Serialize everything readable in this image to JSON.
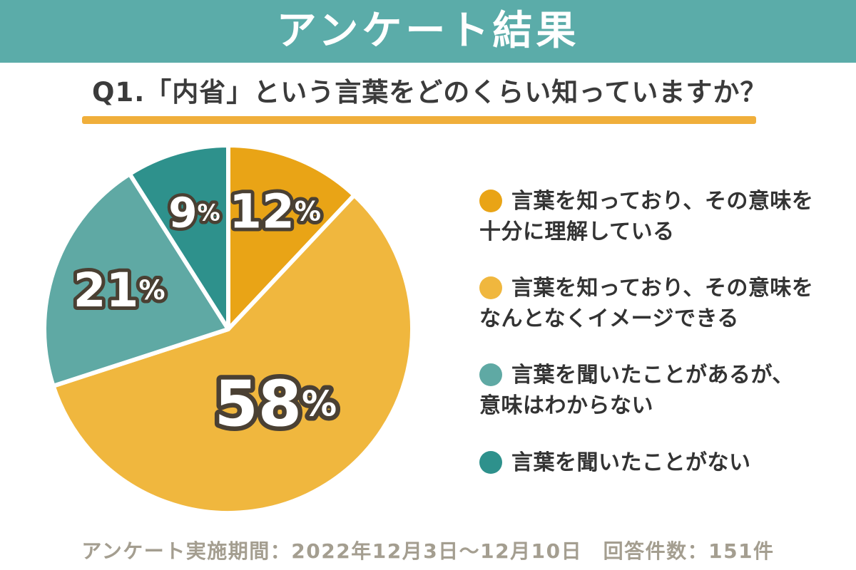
{
  "header": {
    "title": "アンケート結果"
  },
  "question": {
    "label": "Q1.「内省」という言葉をどのくらい知っていますか？"
  },
  "chart_data": {
    "type": "pie",
    "title": "Q1.「内省」という言葉をどのくらい知っていますか？",
    "start_angle_deg": 0,
    "direction": "clockwise",
    "slices": [
      {
        "label": "言葉を知っており、その意味を十分に理解している",
        "value": 12,
        "display": "12%",
        "color": "#E9A416"
      },
      {
        "label": "言葉を知っており、その意味をなんとなくイメージできる",
        "value": 58,
        "display": "58%",
        "color": "#F0B73E"
      },
      {
        "label": "言葉を聞いたことがあるが、意味はわからない",
        "value": 21,
        "display": "21%",
        "color": "#5FA9A4"
      },
      {
        "label": "言葉を聞いたことがない",
        "value": 9,
        "display": "9%",
        "color": "#2E918C"
      }
    ],
    "units": "%",
    "legend_position": "right",
    "label_radius": [
      0.69,
      0.48,
      0.63,
      0.66
    ],
    "label_size": [
      66,
      88,
      66,
      58
    ]
  },
  "legend": {
    "items": [
      {
        "text": "言葉を知っており、その意味を\n十分に理解している",
        "color": "#E9A416",
        "icon": "circle-swatch"
      },
      {
        "text": "言葉を知っており、その意味を\nなんとなくイメージできる",
        "color": "#F0B73E",
        "icon": "circle-swatch"
      },
      {
        "text": "言葉を聞いたことがあるが、\n意味はわからない",
        "color": "#5FA9A4",
        "icon": "circle-swatch"
      },
      {
        "text": "言葉を聞いたことがない",
        "color": "#2E918C",
        "icon": "circle-swatch"
      }
    ]
  },
  "footer": {
    "note": "アンケート実施期間：2022年12月3日～12月10日　回答件数：151件"
  },
  "colors": {
    "background": "#FFFFFF",
    "header_bg": "#5BACA9",
    "title_text": "#3B3B3B",
    "underline": "#F0AF3B",
    "label_stroke": "#4A4033",
    "legend_text": "#333333",
    "footer_text": "#A49E90"
  }
}
